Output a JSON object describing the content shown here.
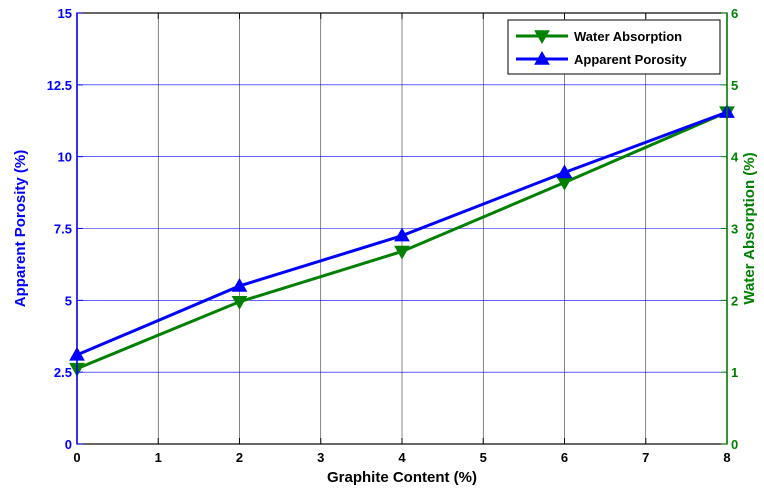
{
  "chart_data": {
    "type": "line",
    "title": "",
    "xlabel": "Graphite Content (%)",
    "ylabel_left": "Apparent Porosity (%)",
    "ylabel_right": "Water Absorption (%)",
    "xlim": [
      0,
      8
    ],
    "ylim_left": [
      0,
      15
    ],
    "ylim_right": [
      0,
      6
    ],
    "x_ticks": [
      "0",
      "1",
      "2",
      "3",
      "4",
      "5",
      "6",
      "7",
      "8"
    ],
    "y_left_ticks": [
      "0",
      "2.5",
      "5",
      "7.5",
      "10",
      "12.5",
      "15"
    ],
    "y_right_ticks": [
      "0",
      "1",
      "2",
      "3",
      "4",
      "5",
      "6"
    ],
    "grid": true,
    "legend_position": "top-right",
    "series": [
      {
        "name": "Water Absorption",
        "axis": "right",
        "color": "#008000",
        "marker": "triangle-down",
        "x": [
          0,
          2,
          4,
          6,
          8
        ],
        "values": [
          1.05,
          1.98,
          2.68,
          3.64,
          4.62
        ]
      },
      {
        "name": "Apparent Porosity",
        "axis": "left",
        "color": "#0000ff",
        "marker": "triangle-up",
        "x": [
          0,
          2,
          4,
          6,
          8
        ],
        "values": [
          3.1,
          5.5,
          7.25,
          9.45,
          11.55
        ]
      }
    ]
  }
}
